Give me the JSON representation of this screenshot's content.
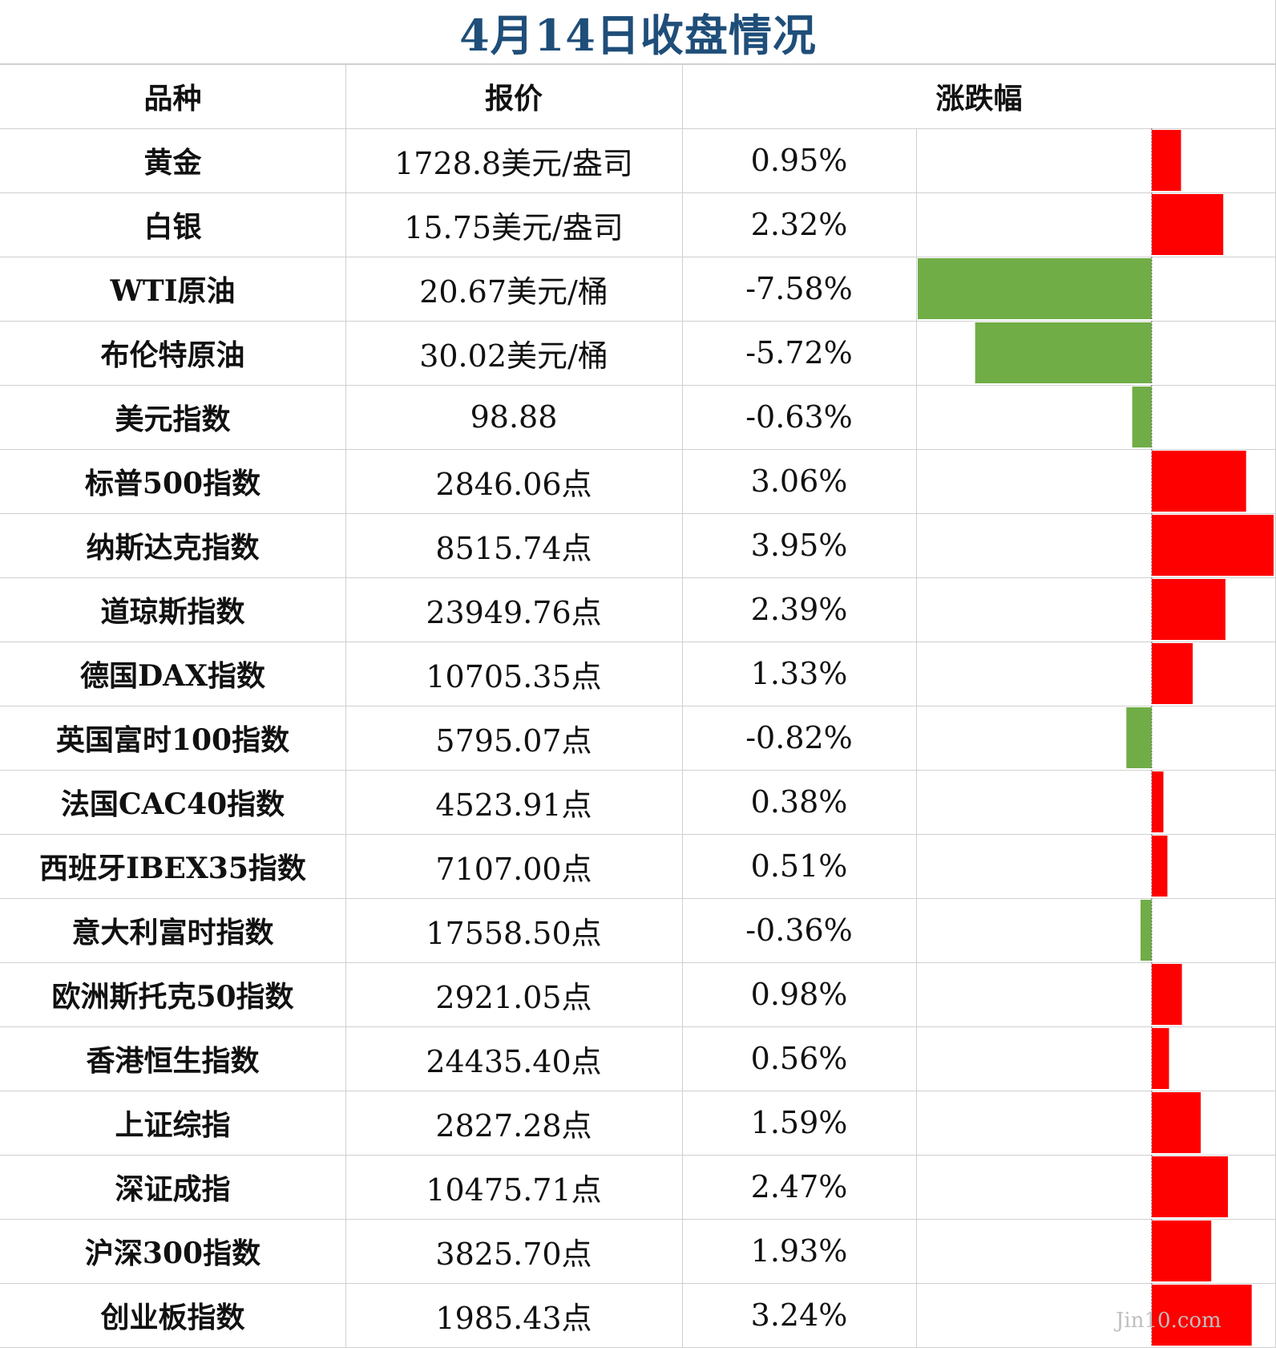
{
  "title": "4月14日收盘情况",
  "headers": {
    "name": "品种",
    "price": "报价",
    "change": "涨跌幅"
  },
  "watermark": "Jin10.com",
  "colors": {
    "up": "#ff0000",
    "down": "#70ad47",
    "title": "#1f4e79"
  },
  "chart_data": {
    "type": "bar",
    "orientation": "horizontal",
    "title": "4月14日收盘情况",
    "columns": [
      "品种",
      "报价",
      "涨跌幅"
    ],
    "series": [
      {
        "name": "涨跌幅",
        "unit": "%"
      }
    ],
    "rows": [
      {
        "name": "黄金",
        "price": "1728.8美元/盎司",
        "pct_label": "0.95%",
        "value": 0.95
      },
      {
        "name": "白银",
        "price": "15.75美元/盎司",
        "pct_label": "2.32%",
        "value": 2.32
      },
      {
        "name": "WTI原油",
        "price": "20.67美元/桶",
        "pct_label": "-7.58%",
        "value": -7.58
      },
      {
        "name": "布伦特原油",
        "price": "30.02美元/桶",
        "pct_label": "-5.72%",
        "value": -5.72
      },
      {
        "name": "美元指数",
        "price": "98.88",
        "pct_label": "-0.63%",
        "value": -0.63
      },
      {
        "name": "标普500指数",
        "price": "2846.06点",
        "pct_label": "3.06%",
        "value": 3.06
      },
      {
        "name": "纳斯达克指数",
        "price": "8515.74点",
        "pct_label": "3.95%",
        "value": 3.95
      },
      {
        "name": "道琼斯指数",
        "price": "23949.76点",
        "pct_label": "2.39%",
        "value": 2.39
      },
      {
        "name": "德国DAX指数",
        "price": "10705.35点",
        "pct_label": "1.33%",
        "value": 1.33
      },
      {
        "name": "英国富时100指数",
        "price": "5795.07点",
        "pct_label": "-0.82%",
        "value": -0.82
      },
      {
        "name": "法国CAC40指数",
        "price": "4523.91点",
        "pct_label": "0.38%",
        "value": 0.38
      },
      {
        "name": "西班牙IBEX35指数",
        "price": "7107.00点",
        "pct_label": "0.51%",
        "value": 0.51
      },
      {
        "name": "意大利富时指数",
        "price": "17558.50点",
        "pct_label": "-0.36%",
        "value": -0.36
      },
      {
        "name": "欧洲斯托克50指数",
        "price": "2921.05点",
        "pct_label": "0.98%",
        "value": 0.98
      },
      {
        "name": "香港恒生指数",
        "price": "24435.40点",
        "pct_label": "0.56%",
        "value": 0.56
      },
      {
        "name": "上证综指",
        "price": "2827.28点",
        "pct_label": "1.59%",
        "value": 1.59
      },
      {
        "name": "深证成指",
        "price": "10475.71点",
        "pct_label": "2.47%",
        "value": 2.47
      },
      {
        "name": "沪深300指数",
        "price": "3825.70点",
        "pct_label": "1.93%",
        "value": 1.93
      },
      {
        "name": "创业板指数",
        "price": "1985.43点",
        "pct_label": "3.24%",
        "value": 3.24
      }
    ],
    "xlim": [
      -7.58,
      3.95
    ],
    "grid": false,
    "legend": "none"
  }
}
